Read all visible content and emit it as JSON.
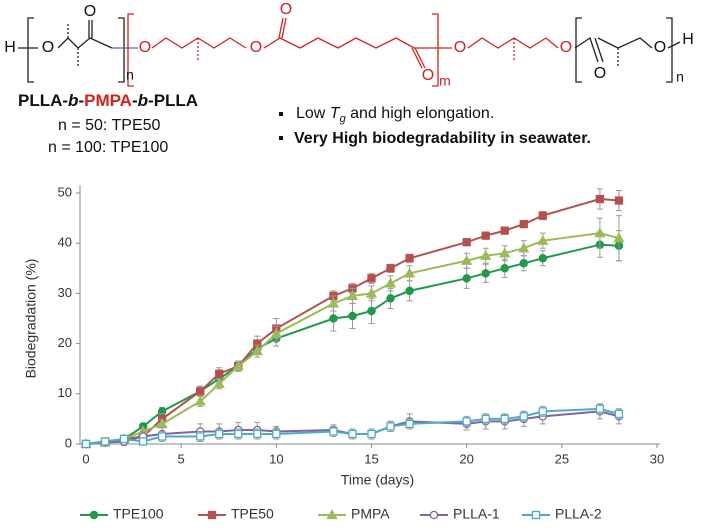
{
  "structure": {
    "atoms": [
      "H",
      "O",
      "O",
      "n",
      "O",
      "O",
      "O",
      "O",
      "m",
      "O",
      "O",
      "O",
      "O",
      "H",
      "n"
    ],
    "name_parts": [
      "PLLA-",
      "b",
      "-",
      "PMPA",
      "-",
      "b",
      "-PLLA"
    ],
    "variants": [
      "n = 50: TPE50",
      "n = 100: TPE100"
    ]
  },
  "notes": [
    [
      "Low ",
      "T",
      "g",
      " and high elongation."
    ],
    [
      "Very High biodegradability in seawater."
    ]
  ],
  "chart_data": {
    "type": "line",
    "x_label": "Time (days)",
    "y_label": "Biodegradation (%)",
    "x": [
      0,
      1,
      2,
      3,
      4,
      6,
      7,
      8,
      9,
      10,
      13,
      14,
      15,
      16,
      17,
      20,
      21,
      22,
      23,
      24,
      27,
      28
    ],
    "xlim": [
      0,
      30
    ],
    "xticks": [
      0,
      5,
      10,
      15,
      20,
      25,
      30
    ],
    "ylim": [
      0,
      50
    ],
    "yticks": [
      0,
      10,
      20,
      30,
      40,
      50
    ],
    "grid": false,
    "legend": "bottom",
    "series": [
      {
        "name": "TPE100",
        "color": "#1f9a4c",
        "marker": "circle",
        "values": [
          0,
          0.3,
          1,
          3.5,
          6.5,
          10.5,
          13,
          15.5,
          19,
          21,
          25,
          25.5,
          26.5,
          29,
          30.5,
          33,
          34,
          35,
          36,
          37,
          39.7,
          39.5
        ],
        "errors": [
          0,
          0.3,
          0.5,
          0.6,
          0.8,
          1,
          1,
          1,
          1.2,
          1.5,
          2.5,
          2.5,
          2.5,
          2,
          2,
          2,
          1.8,
          1.8,
          1.5,
          1.5,
          2.5,
          3
        ]
      },
      {
        "name": "TPE50",
        "color": "#b5504f",
        "marker": "square",
        "values": [
          0,
          0.5,
          1,
          1.5,
          5,
          10.5,
          14,
          15.5,
          20,
          23,
          29.5,
          31,
          33,
          35,
          37,
          40.2,
          41.5,
          42.5,
          43.8,
          45.5,
          48.8,
          48.5
        ],
        "errors": [
          0,
          0.3,
          0.5,
          0.5,
          1,
          1,
          1.2,
          1,
          1.5,
          2,
          1,
          1,
          1,
          0.8,
          0.8,
          0.6,
          0.6,
          0.6,
          0.6,
          0.8,
          2,
          2
        ]
      },
      {
        "name": "PMPA",
        "color": "#9bbb59",
        "marker": "triangle",
        "values": [
          0,
          0.3,
          1,
          2.5,
          4,
          8.5,
          12,
          15.5,
          18.5,
          22,
          28,
          29.5,
          30,
          32,
          34,
          36.5,
          37.5,
          38,
          39,
          40.5,
          42,
          41
        ],
        "errors": [
          0,
          0.3,
          0.5,
          0.5,
          0.8,
          1,
          1,
          1,
          1.2,
          1.5,
          1.5,
          1.5,
          1.5,
          1.5,
          1.5,
          1.5,
          1.5,
          1.5,
          1.5,
          1.5,
          3,
          4.5
        ]
      },
      {
        "name": "PLLA-1",
        "color": "#8064a2",
        "marker": "open-circle",
        "values": [
          0,
          0.3,
          0.5,
          1.5,
          2,
          2.5,
          2.5,
          2.8,
          2.8,
          2.5,
          2.8,
          2,
          2,
          3.5,
          4.5,
          4,
          4.5,
          4.5,
          5,
          5.5,
          6.5,
          5.5
        ],
        "errors": [
          0,
          0.3,
          0.8,
          1,
          1.2,
          1.5,
          1.5,
          1.5,
          1.5,
          1,
          1,
          1,
          1,
          1,
          1.5,
          1.2,
          1.5,
          1.5,
          1.5,
          1.5,
          1.5,
          1.5
        ]
      },
      {
        "name": "PLLA-2",
        "color": "#4bacc6",
        "marker": "open-square",
        "values": [
          0,
          0.5,
          1,
          0.5,
          1.5,
          1.5,
          2,
          2,
          2,
          2,
          2.5,
          2,
          2,
          3.5,
          4,
          4.5,
          5,
          5,
          5.5,
          6.5,
          7,
          6
        ],
        "errors": [
          0,
          0.3,
          0.5,
          0.5,
          1,
          1,
          1,
          1,
          1,
          1,
          1,
          1,
          1,
          1,
          1,
          1,
          1,
          1,
          1,
          1,
          1,
          1
        ]
      }
    ]
  }
}
